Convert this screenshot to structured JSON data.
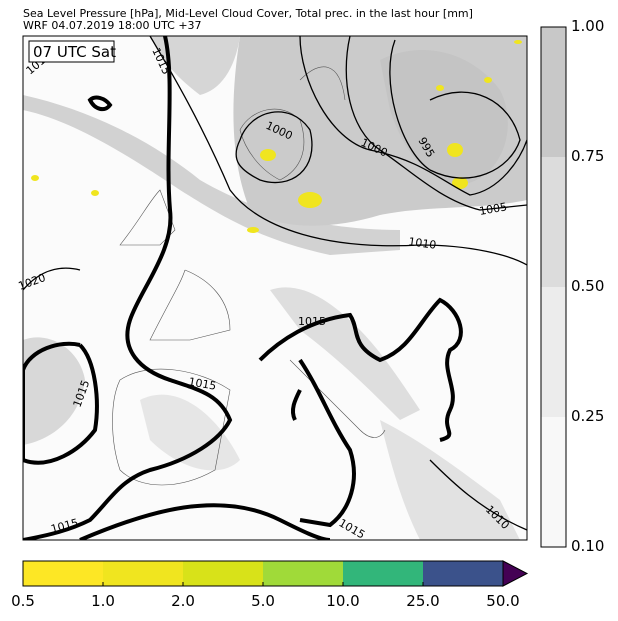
{
  "title": {
    "line1": "Sea Level Pressure [hPa], Mid-Level Cloud Cover, Total prec. in the last hour [mm]",
    "line2": "WRF 04.07.2019 18:00 UTC +37"
  },
  "map": {
    "time_label": "07 UTC Sat",
    "isobar_labels": [
      "1015",
      "1000",
      "1000",
      "995",
      "1005",
      "1010",
      "1020",
      "1015",
      "1015",
      "1015",
      "1015",
      "1015",
      "1010",
      "1010"
    ]
  },
  "cloud_colorbar": {
    "ticks": [
      "1.00",
      "0.75",
      "0.50",
      "0.25",
      "0.10"
    ],
    "colors": [
      "#c8c8c8",
      "#dcdcdc",
      "#ececec",
      "#f8f8f8"
    ]
  },
  "precip_colorbar": {
    "ticks": [
      "0.5",
      "1.0",
      "2.0",
      "5.0",
      "10.0",
      "25.0",
      "50.0"
    ],
    "colors": [
      "#fde725",
      "#f0e51f",
      "#d8e219",
      "#a0da39",
      "#32b67a",
      "#3b528b",
      "#440154"
    ]
  }
}
